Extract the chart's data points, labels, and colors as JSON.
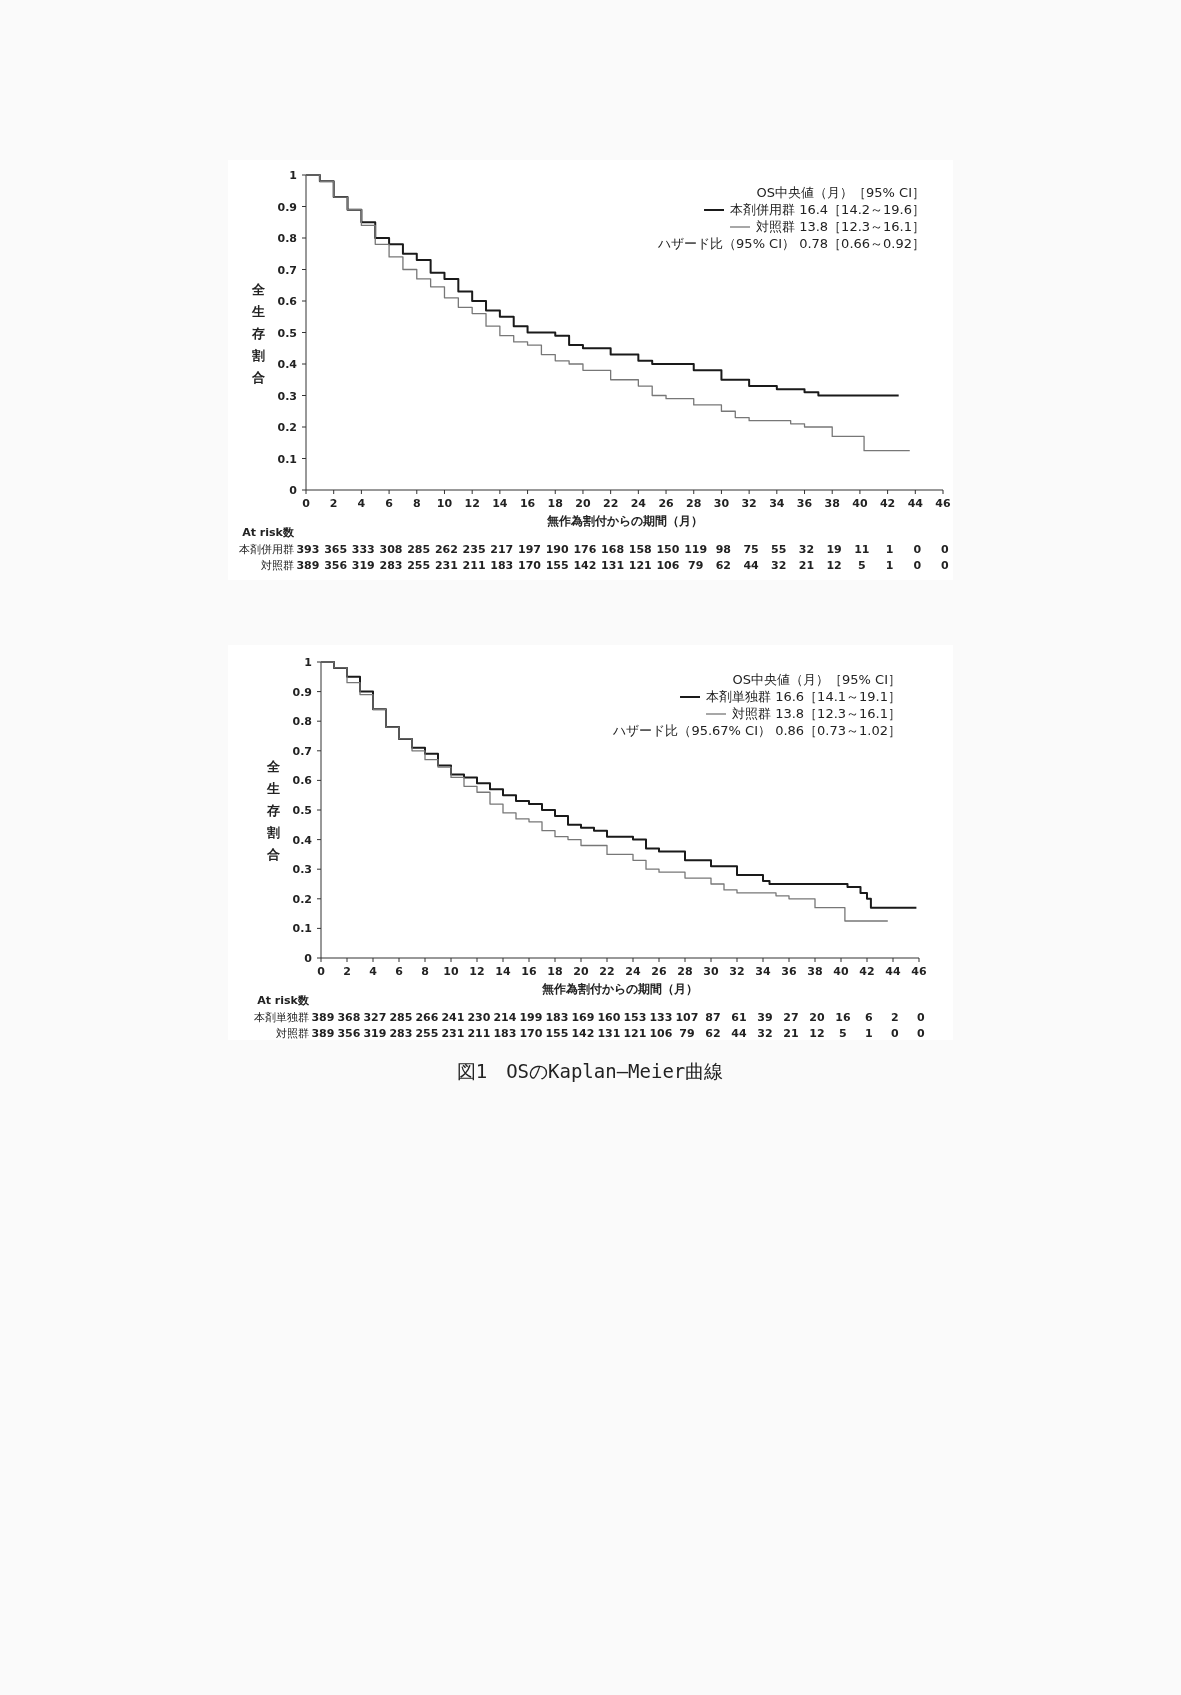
{
  "chart_data": [
    {
      "type": "step",
      "xlabel": "無作為割付からの期間（月）",
      "ylabel": "全生存割合",
      "legend_title": "OS中央値（月）［95% CI］",
      "legend": "top right",
      "xlim": [
        0,
        46
      ],
      "xticks": [
        0,
        2,
        4,
        6,
        8,
        10,
        12,
        14,
        16,
        18,
        20,
        22,
        24,
        26,
        28,
        30,
        32,
        34,
        36,
        38,
        40,
        42,
        44,
        46
      ],
      "ylim": [
        0,
        1
      ],
      "yticks": [
        0,
        0.1,
        0.2,
        0.3,
        0.4,
        0.5,
        0.6,
        0.7,
        0.8,
        0.9,
        1
      ],
      "series": [
        {
          "name": "本剤併用群 16.4［14.2～19.6］",
          "color": "#1a1a1a",
          "x": [
            0,
            1,
            2,
            3,
            4,
            5,
            6,
            7,
            8,
            9,
            10,
            11,
            12,
            13,
            14,
            15,
            16,
            18,
            19,
            20,
            22,
            24,
            25,
            28,
            30,
            32,
            34,
            36,
            37,
            42.8
          ],
          "values": [
            1,
            0.98,
            0.93,
            0.89,
            0.85,
            0.8,
            0.78,
            0.75,
            0.73,
            0.69,
            0.67,
            0.63,
            0.6,
            0.57,
            0.55,
            0.52,
            0.5,
            0.49,
            0.46,
            0.45,
            0.43,
            0.41,
            0.4,
            0.38,
            0.35,
            0.33,
            0.32,
            0.31,
            0.3,
            0.3
          ]
        },
        {
          "name": "対照群 13.8［12.3～16.1］",
          "color": "#777777",
          "x": [
            0,
            1,
            2,
            3,
            4,
            5,
            6,
            7,
            8,
            9,
            10,
            11,
            12,
            13,
            14,
            15,
            16,
            17,
            18,
            19,
            20,
            22,
            24,
            25,
            26,
            28,
            30,
            31,
            32,
            35,
            36,
            38,
            40.3,
            43.6
          ],
          "values": [
            1,
            0.98,
            0.93,
            0.89,
            0.84,
            0.78,
            0.74,
            0.7,
            0.67,
            0.645,
            0.61,
            0.58,
            0.56,
            0.52,
            0.49,
            0.47,
            0.46,
            0.43,
            0.41,
            0.4,
            0.38,
            0.35,
            0.33,
            0.3,
            0.29,
            0.27,
            0.25,
            0.23,
            0.22,
            0.21,
            0.2,
            0.17,
            0.125,
            0.125
          ]
        }
      ],
      "annotations": [
        "ハザード比（95% CI） 0.78［0.66～0.92］",
        "At risk数",
        "本剤併用群 393 365 333 308 285 262 235 217 197 190 176 168 158 150 119 98 75 55 32 19 11 1 0 0",
        "対照群 389 356 319 283 255 231 211 183 170 155 142 131 121 106 79 62 44 32 21 12 5 1 0 0"
      ]
    },
    {
      "type": "step",
      "xlabel": "無作為割付からの期間（月）",
      "ylabel": "全生存割合",
      "legend_title": "OS中央値（月）［95% CI］",
      "legend": "top right",
      "xlim": [
        0,
        46
      ],
      "xticks": [
        0,
        2,
        4,
        6,
        8,
        10,
        12,
        14,
        16,
        18,
        20,
        22,
        24,
        26,
        28,
        30,
        32,
        34,
        36,
        38,
        40,
        42,
        44,
        46
      ],
      "ylim": [
        0,
        1
      ],
      "yticks": [
        0,
        0.1,
        0.2,
        0.3,
        0.4,
        0.5,
        0.6,
        0.7,
        0.8,
        0.9,
        1
      ],
      "series": [
        {
          "name": "本剤単独群 16.6［14.1～19.1］",
          "color": "#1a1a1a",
          "x": [
            0,
            1,
            2,
            3,
            4,
            5,
            6,
            7,
            8,
            9,
            10,
            11,
            12,
            13,
            14,
            15,
            16,
            17,
            18,
            19,
            20,
            21,
            22,
            24,
            25,
            26,
            28,
            30,
            32,
            34,
            34.5,
            40.5,
            41.5,
            42,
            42.3,
            45.8
          ],
          "values": [
            1,
            0.98,
            0.95,
            0.9,
            0.84,
            0.78,
            0.74,
            0.71,
            0.69,
            0.65,
            0.62,
            0.61,
            0.59,
            0.57,
            0.55,
            0.53,
            0.52,
            0.5,
            0.48,
            0.45,
            0.44,
            0.43,
            0.41,
            0.4,
            0.37,
            0.36,
            0.33,
            0.31,
            0.28,
            0.26,
            0.25,
            0.24,
            0.22,
            0.2,
            0.17,
            0.17
          ]
        },
        {
          "name": "対照群 13.8［12.3～16.1］",
          "color": "#777777",
          "x": [
            0,
            1,
            2,
            3,
            4,
            5,
            6,
            7,
            8,
            9,
            10,
            11,
            12,
            13,
            14,
            15,
            16,
            17,
            18,
            19,
            20,
            22,
            24,
            25,
            26,
            28,
            30,
            31,
            32,
            35,
            36,
            38,
            40.3,
            43.6
          ],
          "values": [
            1,
            0.98,
            0.93,
            0.89,
            0.84,
            0.78,
            0.74,
            0.7,
            0.67,
            0.645,
            0.61,
            0.58,
            0.56,
            0.52,
            0.49,
            0.47,
            0.46,
            0.43,
            0.41,
            0.4,
            0.38,
            0.35,
            0.33,
            0.3,
            0.29,
            0.27,
            0.25,
            0.23,
            0.22,
            0.21,
            0.2,
            0.17,
            0.125,
            0.125
          ]
        }
      ],
      "annotations": [
        "ハザード比（95.67% CI） 0.86［0.73～1.02］",
        "At risk数",
        "本剤単独群 389 368 327 285 266 241 230 214 199 183 169 160 153 133 107 87 61 39 27 20 16 6 2 0",
        "対照群 389 356 319 283 255 231 211 183 170 155 142 131 121 106 79 62 44 32 21 12 5 1 0 0",
        "図1　OSのKaplan―Meier曲線"
      ]
    }
  ]
}
